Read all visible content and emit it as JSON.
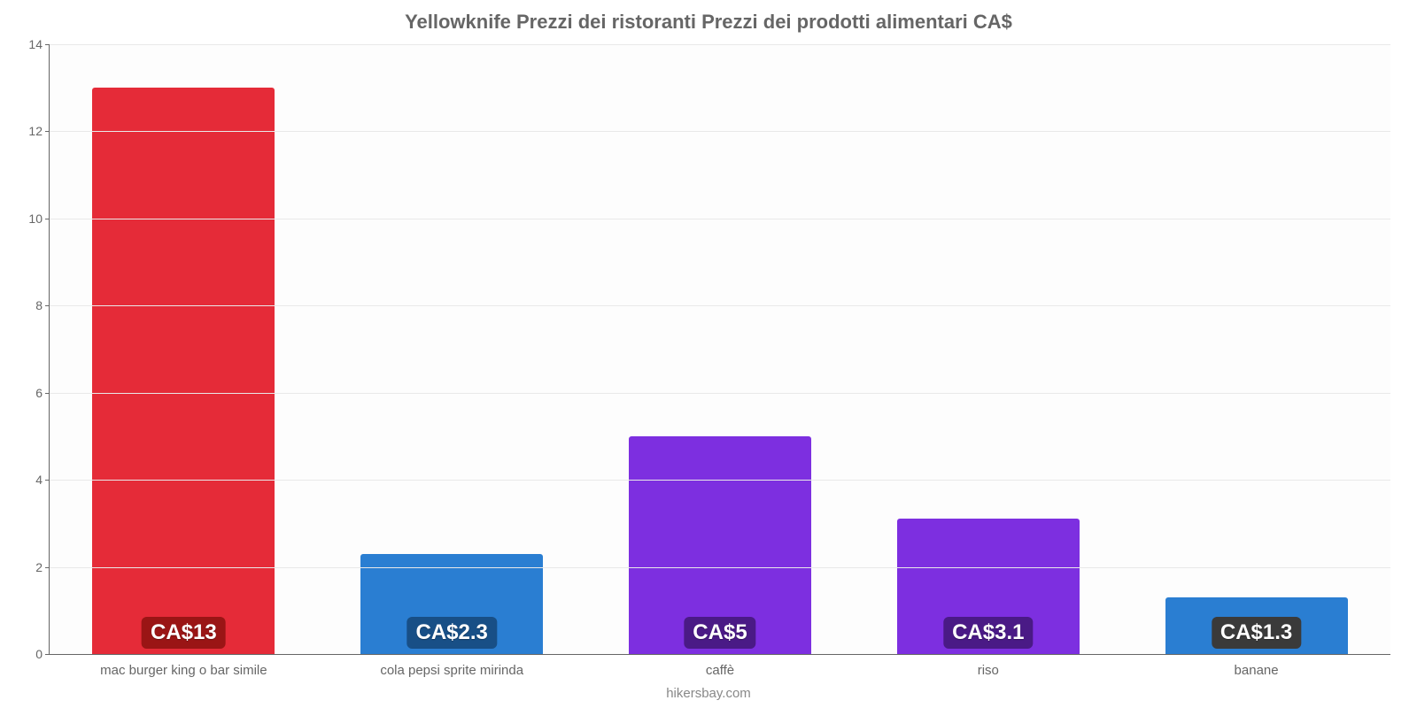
{
  "chart": {
    "type": "bar",
    "title": "Yellowknife Prezzi dei ristoranti Prezzi dei prodotti alimentari CA$",
    "title_fontsize": 22,
    "title_color": "#666666",
    "attribution": "hikersbay.com",
    "attribution_color": "#888888",
    "background_color": "#ffffff",
    "plot_background_color": "#fdfdfd",
    "grid_color": "#e9e9e9",
    "axis_color": "#666666",
    "tick_label_color": "#666666",
    "tick_fontsize": 14,
    "xlabel_fontsize": 15,
    "bar_label_fontsize": 24,
    "ylim": [
      0,
      14
    ],
    "ytick_step": 2,
    "yticks": [
      0,
      2,
      4,
      6,
      8,
      10,
      12,
      14
    ],
    "bar_width_pct": 68,
    "categories": [
      "mac burger king o bar simile",
      "cola pepsi sprite mirinda",
      "caffè",
      "riso",
      "banane"
    ],
    "values": [
      13,
      2.3,
      5,
      3.1,
      1.3
    ],
    "value_labels": [
      "CA$13",
      "CA$2.3",
      "CA$5",
      "CA$3.1",
      "CA$1.3"
    ],
    "bar_colors": [
      "#e52b38",
      "#2a7ed2",
      "#7d2fe0",
      "#7d2fe0",
      "#2a7ed2"
    ],
    "label_bg_colors": [
      "#9a1515",
      "#184f86",
      "#4a1a86",
      "#4a1a86",
      "#3a3a3a"
    ]
  }
}
